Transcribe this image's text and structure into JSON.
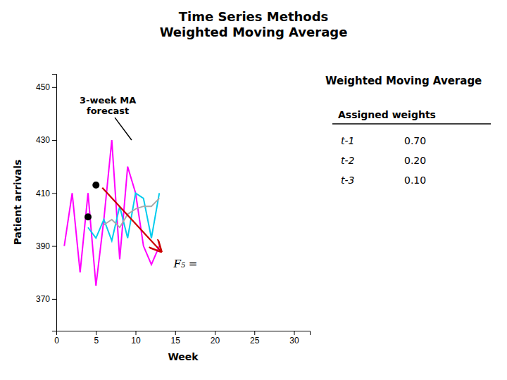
{
  "chart_data": {
    "type": "line",
    "title": "Time Series Methods\nWeighted Moving Average",
    "x_label": "Week",
    "y_label": "Patient arrivals",
    "xlim": [
      0,
      32
    ],
    "ylim": [
      358,
      455
    ],
    "xticks": [
      0,
      5,
      10,
      15,
      20,
      25,
      30
    ],
    "yticks": [
      370,
      390,
      410,
      430,
      450
    ],
    "grid": false,
    "series": [
      {
        "type": "line",
        "color": "#ff00ff",
        "x": [
          1,
          2,
          3,
          4,
          5,
          6,
          7,
          8,
          9,
          10,
          11,
          12,
          13
        ],
        "values": [
          390,
          410,
          380,
          410,
          375,
          400,
          430,
          385,
          420,
          410,
          390,
          383,
          390
        ]
      },
      {
        "type": "line",
        "color": "#00ccee",
        "x": [
          4,
          5,
          6,
          7,
          8,
          9,
          10,
          11,
          12,
          13
        ],
        "values": [
          397,
          393,
          400,
          392,
          405,
          393,
          410,
          408,
          393,
          410
        ]
      },
      {
        "type": "line",
        "color": "#aaaaaa",
        "x": [
          6,
          7,
          8,
          9,
          10,
          11,
          12,
          13
        ],
        "values": [
          398,
          400,
          397,
          402,
          404,
          405,
          405,
          408
        ]
      },
      {
        "type": "scatter",
        "color": "#000000",
        "marker": "circle",
        "x": [
          4,
          5
        ],
        "values": [
          401,
          413
        ]
      }
    ],
    "arrows": [
      {
        "x": 5.8,
        "y": 412,
        "x2": 13.2,
        "y2": 388,
        "color": "#cc0000"
      }
    ],
    "annotations": [
      {
        "text": "3-week MA\nforecast",
        "x": 6.5,
        "y": 447,
        "x2": 9.5,
        "y2": 430
      },
      {
        "text": "F₅ =",
        "x": 14.8,
        "y": 383
      }
    ],
    "weights_panel": {
      "title": "Weighted Moving Average",
      "heading": "Assigned weights",
      "labels": [
        "t-1",
        "t-2",
        "t-3"
      ],
      "values": [
        0.7,
        0.2,
        0.1
      ],
      "value_labels": [
        "0.70",
        "0.20",
        "0.10"
      ]
    }
  }
}
